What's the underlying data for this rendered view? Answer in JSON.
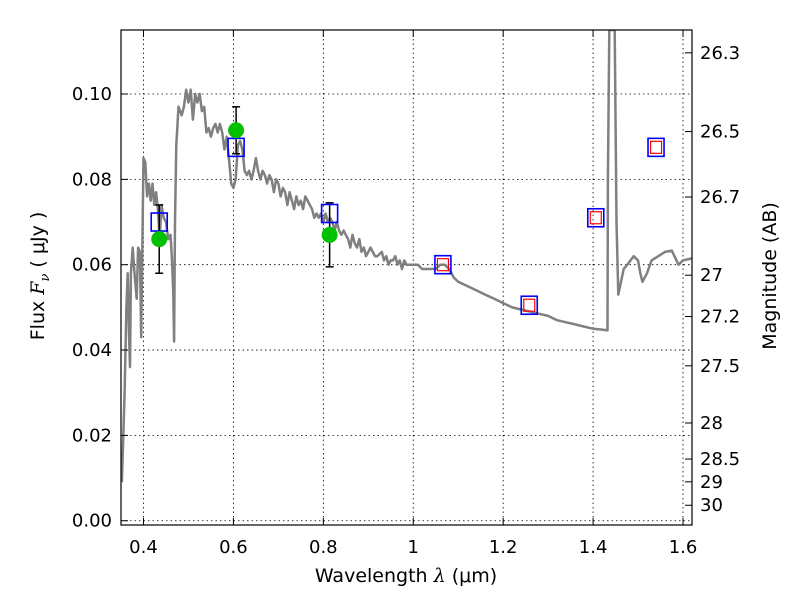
{
  "chart_data": {
    "type": "line",
    "xlabel_main": "Wavelength",
    "xlabel_symbol": "λ",
    "xlabel_unit": "(μm)",
    "ylabel_main": "Flux",
    "ylabel_symbol": "F",
    "ylabel_sub": "ν",
    "ylabel_unit": "( μJy )",
    "y2label": "Magnitude (AB)",
    "xlim": [
      0.35,
      1.62
    ],
    "ylim": [
      -0.001,
      0.115
    ],
    "grid": true,
    "x_ticks": [
      {
        "value": 0.4,
        "label": "0.4"
      },
      {
        "value": 0.6,
        "label": "0.6"
      },
      {
        "value": 0.8,
        "label": "0.8"
      },
      {
        "value": 1.0,
        "label": "1"
      },
      {
        "value": 1.2,
        "label": "1.2"
      },
      {
        "value": 1.4,
        "label": "1.4"
      },
      {
        "value": 1.6,
        "label": "1.6"
      }
    ],
    "y_ticks": [
      {
        "value": 0.0,
        "label": "0.00"
      },
      {
        "value": 0.02,
        "label": "0.02"
      },
      {
        "value": 0.04,
        "label": "0.04"
      },
      {
        "value": 0.06,
        "label": "0.06"
      },
      {
        "value": 0.08,
        "label": "0.08"
      },
      {
        "value": 0.1,
        "label": "0.10"
      }
    ],
    "mag_ticks": [
      {
        "value": 26.3,
        "label": "26.3"
      },
      {
        "value": 26.5,
        "label": "26.5"
      },
      {
        "value": 26.7,
        "label": "26.7"
      },
      {
        "value": 27.0,
        "label": "27"
      },
      {
        "value": 27.2,
        "label": "27.2"
      },
      {
        "value": 27.5,
        "label": "27.5"
      },
      {
        "value": 28.0,
        "label": "28"
      },
      {
        "value": 28.5,
        "label": "28.5"
      },
      {
        "value": 29.0,
        "label": "29"
      },
      {
        "value": 30.0,
        "label": "30"
      }
    ],
    "series": [
      {
        "kind": "model_spectrum",
        "color": "#808080",
        "points": [
          [
            0.352,
            0.009
          ],
          [
            0.358,
            0.03
          ],
          [
            0.362,
            0.05
          ],
          [
            0.365,
            0.058
          ],
          [
            0.368,
            0.043
          ],
          [
            0.37,
            0.036
          ],
          [
            0.372,
            0.058
          ],
          [
            0.376,
            0.064
          ],
          [
            0.38,
            0.058
          ],
          [
            0.385,
            0.052
          ],
          [
            0.388,
            0.064
          ],
          [
            0.392,
            0.063
          ],
          [
            0.395,
            0.043
          ],
          [
            0.397,
            0.06
          ],
          [
            0.4,
            0.085
          ],
          [
            0.404,
            0.084
          ],
          [
            0.408,
            0.076
          ],
          [
            0.412,
            0.079
          ],
          [
            0.416,
            0.075
          ],
          [
            0.42,
            0.079
          ],
          [
            0.424,
            0.074
          ],
          [
            0.428,
            0.077
          ],
          [
            0.432,
            0.073
          ],
          [
            0.436,
            0.066
          ],
          [
            0.44,
            0.074
          ],
          [
            0.445,
            0.071
          ],
          [
            0.45,
            0.07
          ],
          [
            0.455,
            0.066
          ],
          [
            0.46,
            0.067
          ],
          [
            0.463,
            0.062
          ],
          [
            0.466,
            0.054
          ],
          [
            0.468,
            0.042
          ],
          [
            0.47,
            0.07
          ],
          [
            0.473,
            0.088
          ],
          [
            0.478,
            0.097
          ],
          [
            0.485,
            0.095
          ],
          [
            0.49,
            0.097
          ],
          [
            0.495,
            0.101
          ],
          [
            0.5,
            0.098
          ],
          [
            0.505,
            0.101
          ],
          [
            0.51,
            0.094
          ],
          [
            0.515,
            0.1
          ],
          [
            0.52,
            0.098
          ],
          [
            0.525,
            0.1
          ],
          [
            0.53,
            0.096
          ],
          [
            0.535,
            0.097
          ],
          [
            0.54,
            0.091
          ],
          [
            0.545,
            0.092
          ],
          [
            0.55,
            0.09
          ],
          [
            0.555,
            0.092
          ],
          [
            0.56,
            0.093
          ],
          [
            0.565,
            0.091
          ],
          [
            0.57,
            0.093
          ],
          [
            0.575,
            0.091
          ],
          [
            0.58,
            0.087
          ],
          [
            0.585,
            0.09
          ],
          [
            0.59,
            0.085
          ],
          [
            0.595,
            0.079
          ],
          [
            0.6,
            0.078
          ],
          [
            0.605,
            0.08
          ],
          [
            0.61,
            0.088
          ],
          [
            0.615,
            0.089
          ],
          [
            0.62,
            0.087
          ],
          [
            0.625,
            0.082
          ],
          [
            0.63,
            0.081
          ],
          [
            0.635,
            0.082
          ],
          [
            0.64,
            0.08
          ],
          [
            0.645,
            0.082
          ],
          [
            0.65,
            0.085
          ],
          [
            0.655,
            0.082
          ],
          [
            0.66,
            0.08
          ],
          [
            0.665,
            0.082
          ],
          [
            0.67,
            0.081
          ],
          [
            0.675,
            0.079
          ],
          [
            0.68,
            0.081
          ],
          [
            0.685,
            0.08
          ],
          [
            0.69,
            0.077
          ],
          [
            0.695,
            0.08
          ],
          [
            0.7,
            0.079
          ],
          [
            0.705,
            0.076
          ],
          [
            0.71,
            0.078
          ],
          [
            0.715,
            0.077
          ],
          [
            0.72,
            0.074
          ],
          [
            0.725,
            0.077
          ],
          [
            0.73,
            0.075
          ],
          [
            0.735,
            0.073
          ],
          [
            0.74,
            0.076
          ],
          [
            0.745,
            0.074
          ],
          [
            0.75,
            0.075
          ],
          [
            0.755,
            0.073
          ],
          [
            0.76,
            0.076
          ],
          [
            0.765,
            0.075
          ],
          [
            0.77,
            0.074
          ],
          [
            0.775,
            0.073
          ],
          [
            0.78,
            0.071
          ],
          [
            0.785,
            0.072
          ],
          [
            0.79,
            0.071
          ],
          [
            0.795,
            0.072
          ],
          [
            0.8,
            0.07
          ],
          [
            0.805,
            0.072
          ],
          [
            0.81,
            0.07
          ],
          [
            0.815,
            0.071
          ],
          [
            0.82,
            0.07
          ],
          [
            0.825,
            0.068
          ],
          [
            0.83,
            0.07
          ],
          [
            0.835,
            0.068
          ],
          [
            0.84,
            0.067
          ],
          [
            0.845,
            0.068
          ],
          [
            0.85,
            0.067
          ],
          [
            0.855,
            0.066
          ],
          [
            0.86,
            0.064
          ],
          [
            0.865,
            0.067
          ],
          [
            0.87,
            0.065
          ],
          [
            0.875,
            0.064
          ],
          [
            0.88,
            0.066
          ],
          [
            0.885,
            0.063
          ],
          [
            0.89,
            0.064
          ],
          [
            0.895,
            0.062
          ],
          [
            0.9,
            0.063
          ],
          [
            0.905,
            0.064
          ],
          [
            0.91,
            0.063
          ],
          [
            0.915,
            0.062
          ],
          [
            0.92,
            0.062
          ],
          [
            0.93,
            0.063
          ],
          [
            0.935,
            0.061
          ],
          [
            0.94,
            0.062
          ],
          [
            0.945,
            0.06
          ],
          [
            0.95,
            0.061
          ],
          [
            0.955,
            0.061
          ],
          [
            0.96,
            0.062
          ],
          [
            0.965,
            0.06
          ],
          [
            0.97,
            0.061
          ],
          [
            0.975,
            0.059
          ],
          [
            0.98,
            0.061
          ],
          [
            0.985,
            0.06
          ],
          [
            0.99,
            0.06
          ],
          [
            1.0,
            0.06
          ],
          [
            1.01,
            0.06
          ],
          [
            1.02,
            0.059
          ],
          [
            1.03,
            0.059
          ],
          [
            1.04,
            0.059
          ],
          [
            1.05,
            0.059
          ],
          [
            1.06,
            0.06
          ],
          [
            1.07,
            0.06
          ],
          [
            1.08,
            0.059
          ],
          [
            1.09,
            0.057
          ],
          [
            1.1,
            0.056
          ],
          [
            1.12,
            0.055
          ],
          [
            1.14,
            0.054
          ],
          [
            1.16,
            0.053
          ],
          [
            1.18,
            0.052
          ],
          [
            1.2,
            0.051
          ],
          [
            1.22,
            0.05
          ],
          [
            1.24,
            0.0495
          ],
          [
            1.26,
            0.049
          ],
          [
            1.28,
            0.0485
          ],
          [
            1.3,
            0.048
          ],
          [
            1.32,
            0.047
          ],
          [
            1.34,
            0.0465
          ],
          [
            1.36,
            0.046
          ],
          [
            1.38,
            0.0455
          ],
          [
            1.4,
            0.045
          ],
          [
            1.42,
            0.0448
          ],
          [
            1.432,
            0.0446
          ],
          [
            1.433,
            0.08
          ],
          [
            1.436,
            0.115
          ],
          [
            1.448,
            0.115
          ],
          [
            1.452,
            0.07
          ],
          [
            1.456,
            0.053
          ],
          [
            1.46,
            0.055
          ],
          [
            1.468,
            0.059
          ],
          [
            1.476,
            0.06
          ],
          [
            1.49,
            0.062
          ],
          [
            1.5,
            0.061
          ],
          [
            1.505,
            0.058
          ],
          [
            1.51,
            0.056
          ],
          [
            1.52,
            0.058
          ],
          [
            1.53,
            0.061
          ],
          [
            1.545,
            0.062
          ],
          [
            1.56,
            0.063
          ],
          [
            1.575,
            0.0633
          ],
          [
            1.59,
            0.06
          ],
          [
            1.6,
            0.061
          ],
          [
            1.62,
            0.0615
          ]
        ]
      },
      {
        "kind": "observed_flux",
        "marker": "circle",
        "color": "#00c000",
        "points": [
          {
            "x": 0.435,
            "y": 0.066,
            "err": 0.008
          },
          {
            "x": 0.606,
            "y": 0.0915,
            "err": 0.0055
          },
          {
            "x": 0.814,
            "y": 0.067,
            "err": 0.0075
          }
        ]
      },
      {
        "kind": "model_band_flux",
        "marker": "square",
        "color": "#0000ff",
        "points": [
          {
            "x": 0.435,
            "y": 0.07
          },
          {
            "x": 0.606,
            "y": 0.0875
          },
          {
            "x": 0.814,
            "y": 0.072
          },
          {
            "x": 1.066,
            "y": 0.06
          },
          {
            "x": 1.258,
            "y": 0.0505
          },
          {
            "x": 1.406,
            "y": 0.071
          },
          {
            "x": 1.54,
            "y": 0.0875
          }
        ]
      },
      {
        "kind": "model_band_flux_inner",
        "marker": "square",
        "color": "#ff0000",
        "points": [
          {
            "x": 1.066,
            "y": 0.06
          },
          {
            "x": 1.258,
            "y": 0.0505
          },
          {
            "x": 1.406,
            "y": 0.071
          },
          {
            "x": 1.54,
            "y": 0.0875
          }
        ]
      }
    ]
  }
}
